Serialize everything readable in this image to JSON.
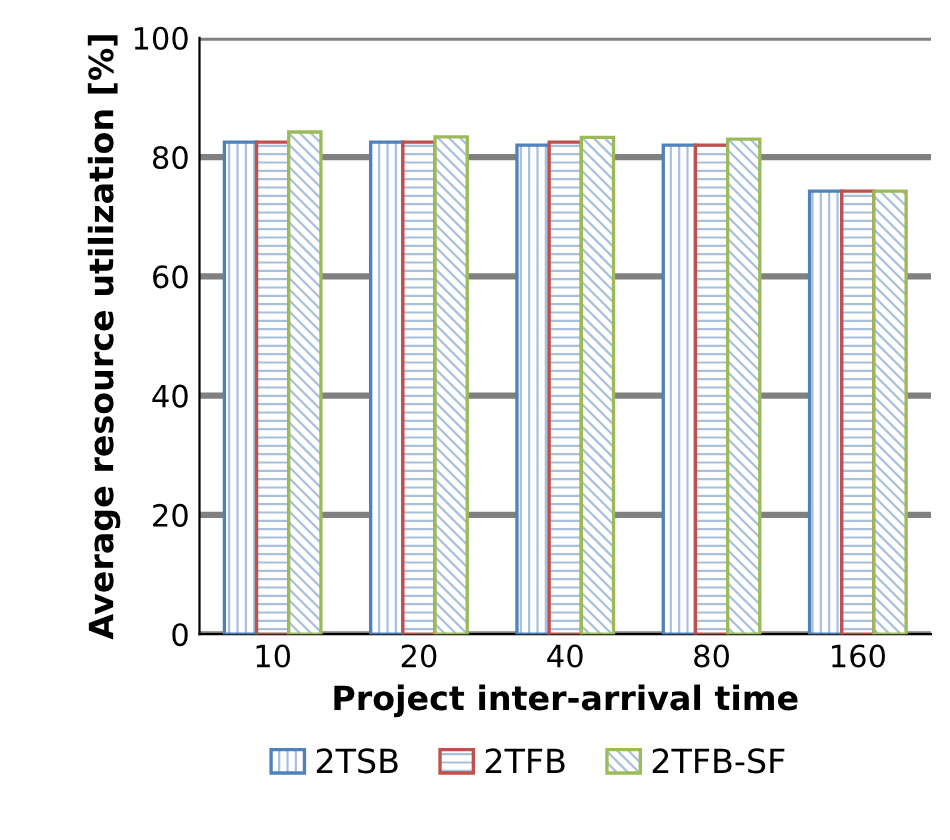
{
  "chart_data": {
    "type": "bar",
    "xlabel": "Project inter-arrival time",
    "ylabel": "Average resource utilization [%]",
    "categories": [
      "10",
      "20",
      "40",
      "80",
      "160"
    ],
    "series": [
      {
        "name": "2TSB",
        "color": "#4f81bd",
        "values": [
          82.5,
          82.5,
          82,
          82,
          74.3
        ]
      },
      {
        "name": "2TFB",
        "color": "#c0504d",
        "values": [
          82.5,
          82.5,
          82.5,
          82,
          74.3
        ]
      },
      {
        "name": "2TFB-SF",
        "color": "#9bbb59",
        "values": [
          84.2,
          83.4,
          83.3,
          83,
          74.3
        ]
      }
    ],
    "ylim": [
      0,
      100
    ],
    "yticks": [
      0,
      20,
      40,
      60,
      80,
      100
    ],
    "grid": "y",
    "legend": "bottom"
  }
}
